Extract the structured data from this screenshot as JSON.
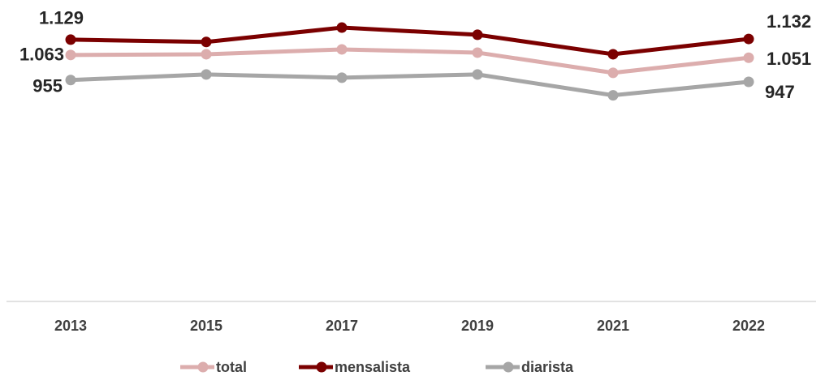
{
  "chart_data": {
    "type": "line",
    "categories": [
      "2013",
      "2015",
      "2017",
      "2019",
      "2021",
      "2022"
    ],
    "series": [
      {
        "name": "total",
        "color": "#dcadad",
        "values": [
          1063,
          1066,
          1087,
          1073,
          986,
          1051
        ],
        "value_labels": [
          "1.063",
          null,
          null,
          null,
          null,
          "1.051"
        ]
      },
      {
        "name": "mensalista",
        "color": "#7b0000",
        "values": [
          1129,
          1119,
          1181,
          1150,
          1066,
          1132
        ],
        "value_labels": [
          "1.129",
          null,
          null,
          null,
          null,
          "1.132"
        ]
      },
      {
        "name": "diarista",
        "color": "#a6a6a6",
        "values": [
          955,
          979,
          965,
          979,
          889,
          947
        ],
        "value_labels": [
          "955",
          null,
          null,
          null,
          null,
          "947"
        ]
      }
    ],
    "ylim": [
      0,
      1300
    ],
    "legend": "bottom"
  }
}
